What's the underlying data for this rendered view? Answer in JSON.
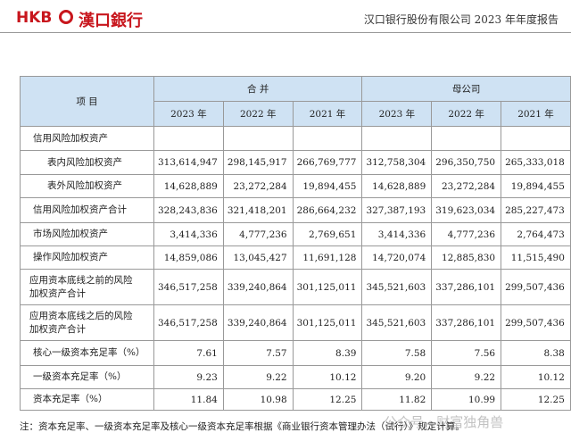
{
  "header": {
    "logo_letters": "HKB",
    "logo_name": "漢口銀行",
    "report_title": "汉口银行股份有限公司 2023 年年度报告"
  },
  "table": {
    "item_header": "项 目",
    "groups": [
      "合 并",
      "母公司"
    ],
    "years": [
      "2023 年",
      "2022 年",
      "2021 年",
      "2023 年",
      "2022 年",
      "2021 年"
    ],
    "rows": [
      {
        "label": "信用风险加权资产"
      },
      {
        "label": "表内风险加权资产",
        "values": [
          "313,614,947",
          "298,145,917",
          "266,769,777",
          "312,758,304",
          "296,350,750",
          "265,333,018"
        ]
      },
      {
        "label": "表外风险加权资产",
        "values": [
          "14,628,889",
          "23,272,284",
          "19,894,455",
          "14,628,889",
          "23,272,284",
          "19,894,455"
        ]
      },
      {
        "label": "信用风险加权资产合计",
        "values": [
          "328,243,836",
          "321,418,201",
          "286,664,232",
          "327,387,193",
          "319,623,034",
          "285,227,473"
        ]
      },
      {
        "label": "市场风险加权资产",
        "values": [
          "3,414,336",
          "4,777,236",
          "2,769,651",
          "3,414,336",
          "4,777,236",
          "2,764,473"
        ]
      },
      {
        "label": "操作风险加权资产",
        "values": [
          "14,859,086",
          "13,045,427",
          "11,691,128",
          "14,720,074",
          "12,885,830",
          "11,515,490"
        ]
      },
      {
        "label": "应用资本底线之前的风险\n加权资产合计",
        "values": [
          "346,517,258",
          "339,240,864",
          "301,125,011",
          "345,521,603",
          "337,286,101",
          "299,507,436"
        ]
      },
      {
        "label": "应用资本底线之后的风险\n加权资产合计",
        "values": [
          "346,517,258",
          "339,240,864",
          "301,125,011",
          "345,521,603",
          "337,286,101",
          "299,507,436"
        ]
      },
      {
        "label": "核心一级资本充足率（%）",
        "values": [
          "7.61",
          "7.57",
          "8.39",
          "7.58",
          "7.56",
          "8.38"
        ]
      },
      {
        "label": "一级资本充足率（%）",
        "values": [
          "9.23",
          "9.22",
          "10.12",
          "9.20",
          "9.22",
          "10.12"
        ]
      },
      {
        "label": "资本充足率（%）",
        "values": [
          "11.84",
          "10.98",
          "12.25",
          "11.82",
          "10.99",
          "12.25"
        ]
      }
    ]
  },
  "note": "注：资本充足率、一级资本充足率及核心一级资本充足率根据《商业银行资本管理办法（试行）》规定计算。",
  "watermark": "公众号 · 财富独角兽"
}
